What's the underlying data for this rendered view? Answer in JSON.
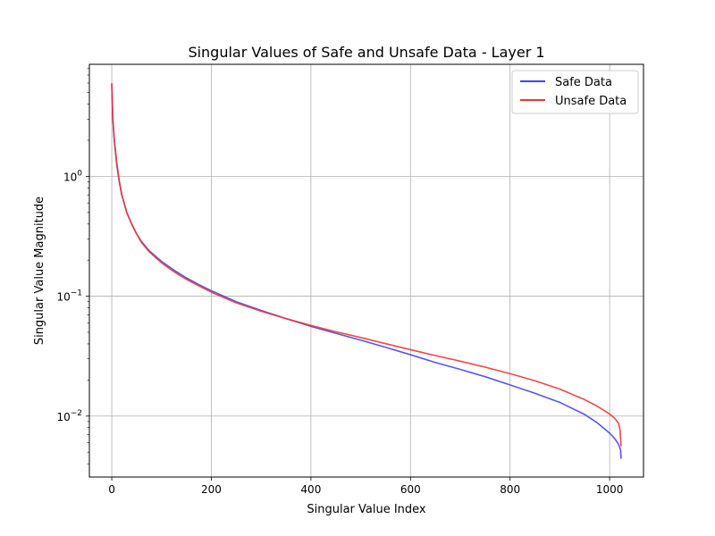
{
  "chart_data": {
    "type": "line",
    "title": "Singular Values of Safe and Unsafe Data - Layer 1",
    "xlabel": "Singular Value Index",
    "ylabel": "Singular Value Magnitude",
    "xlim": [
      -45,
      1068
    ],
    "ylim": [
      0.0031,
      8.6
    ],
    "yscale": "log",
    "grid": true,
    "legend_position": "top-right",
    "x_ticks": [
      {
        "value": 0,
        "label": "0"
      },
      {
        "value": 200,
        "label": "200"
      },
      {
        "value": 400,
        "label": "400"
      },
      {
        "value": 600,
        "label": "600"
      },
      {
        "value": 800,
        "label": "800"
      },
      {
        "value": 1000,
        "label": "1000"
      }
    ],
    "y_ticks": [
      {
        "value": 0.01,
        "base": "10",
        "exp": "−2"
      },
      {
        "value": 0.1,
        "base": "10",
        "exp": "−1"
      },
      {
        "value": 1,
        "base": "10",
        "exp": "0"
      }
    ],
    "series": [
      {
        "name": "Safe Data",
        "color": "#4444ee",
        "points": [
          [
            0,
            5.8
          ],
          [
            2,
            3.0
          ],
          [
            5,
            2.0
          ],
          [
            10,
            1.25
          ],
          [
            15,
            0.9
          ],
          [
            20,
            0.7
          ],
          [
            30,
            0.5
          ],
          [
            40,
            0.4
          ],
          [
            50,
            0.33
          ],
          [
            60,
            0.285
          ],
          [
            75,
            0.24
          ],
          [
            100,
            0.195
          ],
          [
            125,
            0.165
          ],
          [
            150,
            0.142
          ],
          [
            175,
            0.125
          ],
          [
            200,
            0.111
          ],
          [
            250,
            0.09
          ],
          [
            300,
            0.076
          ],
          [
            350,
            0.065
          ],
          [
            400,
            0.056
          ],
          [
            450,
            0.049
          ],
          [
            500,
            0.043
          ],
          [
            550,
            0.0375
          ],
          [
            600,
            0.0325
          ],
          [
            650,
            0.028
          ],
          [
            700,
            0.0245
          ],
          [
            750,
            0.0213
          ],
          [
            800,
            0.0182
          ],
          [
            850,
            0.0155
          ],
          [
            900,
            0.013
          ],
          [
            950,
            0.0103
          ],
          [
            975,
            0.0088
          ],
          [
            1000,
            0.0072
          ],
          [
            1010,
            0.0065
          ],
          [
            1018,
            0.0058
          ],
          [
            1022,
            0.0052
          ],
          [
            1023,
            0.0044
          ]
        ]
      },
      {
        "name": "Unsafe Data",
        "color": "#ee3333",
        "points": [
          [
            0,
            6.0
          ],
          [
            2,
            3.1
          ],
          [
            5,
            2.05
          ],
          [
            10,
            1.3
          ],
          [
            15,
            0.92
          ],
          [
            20,
            0.71
          ],
          [
            30,
            0.5
          ],
          [
            40,
            0.4
          ],
          [
            50,
            0.33
          ],
          [
            60,
            0.28
          ],
          [
            75,
            0.235
          ],
          [
            100,
            0.19
          ],
          [
            125,
            0.16
          ],
          [
            150,
            0.138
          ],
          [
            175,
            0.122
          ],
          [
            200,
            0.108
          ],
          [
            250,
            0.088
          ],
          [
            300,
            0.075
          ],
          [
            350,
            0.065
          ],
          [
            400,
            0.057
          ],
          [
            450,
            0.0505
          ],
          [
            500,
            0.0452
          ],
          [
            550,
            0.0402
          ],
          [
            600,
            0.0358
          ],
          [
            650,
            0.032
          ],
          [
            700,
            0.0287
          ],
          [
            750,
            0.0256
          ],
          [
            800,
            0.0226
          ],
          [
            850,
            0.0197
          ],
          [
            900,
            0.0168
          ],
          [
            950,
            0.0137
          ],
          [
            975,
            0.0121
          ],
          [
            1000,
            0.0104
          ],
          [
            1010,
            0.0096
          ],
          [
            1018,
            0.0087
          ],
          [
            1021,
            0.0076
          ],
          [
            1023,
            0.0056
          ]
        ]
      }
    ]
  }
}
